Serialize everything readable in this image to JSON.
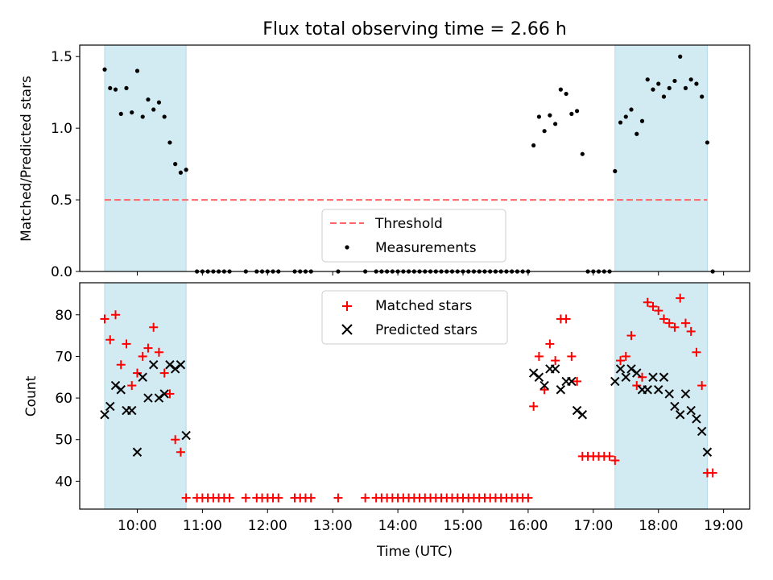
{
  "figure": {
    "title": "Flux total observing time = 2.66 h",
    "xlabel": "Time (UTC)"
  },
  "chart_data": [
    {
      "type": "scatter",
      "panel": "top",
      "ylabel": "Matched/Predicted stars",
      "xlim": [
        "09:07",
        "19:24"
      ],
      "ylim": [
        0,
        1.58
      ],
      "y_ticks": [
        "0.0",
        "0.5",
        "1.0",
        "1.5"
      ],
      "threshold": {
        "name": "Threshold",
        "value": 0.5,
        "x_range": [
          "09:30",
          "18:45"
        ],
        "color": "#ff6666"
      },
      "shaded_regions": [
        [
          "09:30",
          "10:45"
        ],
        [
          "17:20",
          "18:45"
        ]
      ],
      "shade_color": "#add8e6",
      "legend": [
        "Threshold",
        "Measurements"
      ],
      "legend_position": "lower center",
      "series": [
        {
          "name": "Measurements",
          "color": "#000000",
          "points": [
            [
              "09:30",
              1.41
            ],
            [
              "09:35",
              1.28
            ],
            [
              "09:40",
              1.27
            ],
            [
              "09:45",
              1.1
            ],
            [
              "09:50",
              1.28
            ],
            [
              "09:55",
              1.11
            ],
            [
              "10:00",
              1.4
            ],
            [
              "10:05",
              1.08
            ],
            [
              "10:10",
              1.2
            ],
            [
              "10:15",
              1.13
            ],
            [
              "10:20",
              1.18
            ],
            [
              "10:25",
              1.08
            ],
            [
              "10:30",
              0.9
            ],
            [
              "10:35",
              0.75
            ],
            [
              "10:40",
              0.69
            ],
            [
              "10:45",
              0.71
            ],
            [
              "10:55",
              0
            ],
            [
              "11:00",
              0
            ],
            [
              "11:05",
              0
            ],
            [
              "11:10",
              0
            ],
            [
              "11:15",
              0
            ],
            [
              "11:20",
              0
            ],
            [
              "11:25",
              0
            ],
            [
              "11:40",
              0
            ],
            [
              "11:50",
              0
            ],
            [
              "11:55",
              0
            ],
            [
              "12:00",
              0
            ],
            [
              "12:05",
              0
            ],
            [
              "12:10",
              0
            ],
            [
              "12:25",
              0
            ],
            [
              "12:30",
              0
            ],
            [
              "12:35",
              0
            ],
            [
              "12:40",
              0
            ],
            [
              "13:05",
              0
            ],
            [
              "13:30",
              0
            ],
            [
              "13:40",
              0
            ],
            [
              "13:45",
              0
            ],
            [
              "13:50",
              0
            ],
            [
              "13:55",
              0
            ],
            [
              "14:00",
              0
            ],
            [
              "14:05",
              0
            ],
            [
              "14:10",
              0
            ],
            [
              "14:15",
              0
            ],
            [
              "14:20",
              0
            ],
            [
              "14:25",
              0
            ],
            [
              "14:30",
              0
            ],
            [
              "14:35",
              0
            ],
            [
              "14:40",
              0
            ],
            [
              "14:45",
              0
            ],
            [
              "14:50",
              0
            ],
            [
              "14:55",
              0
            ],
            [
              "15:00",
              0
            ],
            [
              "15:05",
              0
            ],
            [
              "15:10",
              0
            ],
            [
              "15:15",
              0
            ],
            [
              "15:20",
              0
            ],
            [
              "15:25",
              0
            ],
            [
              "15:30",
              0
            ],
            [
              "15:35",
              0
            ],
            [
              "15:40",
              0
            ],
            [
              "15:45",
              0
            ],
            [
              "15:50",
              0
            ],
            [
              "15:55",
              0
            ],
            [
              "16:00",
              0
            ],
            [
              "16:05",
              0.88
            ],
            [
              "16:10",
              1.08
            ],
            [
              "16:15",
              0.98
            ],
            [
              "16:20",
              1.09
            ],
            [
              "16:25",
              1.03
            ],
            [
              "16:30",
              1.27
            ],
            [
              "16:35",
              1.24
            ],
            [
              "16:40",
              1.1
            ],
            [
              "16:45",
              1.12
            ],
            [
              "16:50",
              0.82
            ],
            [
              "16:55",
              0
            ],
            [
              "17:00",
              0
            ],
            [
              "17:05",
              0
            ],
            [
              "17:10",
              0
            ],
            [
              "17:15",
              0
            ],
            [
              "17:20",
              0.7
            ],
            [
              "17:25",
              1.04
            ],
            [
              "17:30",
              1.08
            ],
            [
              "17:35",
              1.13
            ],
            [
              "17:40",
              0.96
            ],
            [
              "17:45",
              1.05
            ],
            [
              "17:50",
              1.34
            ],
            [
              "17:55",
              1.27
            ],
            [
              "18:00",
              1.31
            ],
            [
              "18:05",
              1.22
            ],
            [
              "18:10",
              1.28
            ],
            [
              "18:15",
              1.33
            ],
            [
              "18:20",
              1.5
            ],
            [
              "18:25",
              1.28
            ],
            [
              "18:30",
              1.34
            ],
            [
              "18:35",
              1.31
            ],
            [
              "18:40",
              1.22
            ],
            [
              "18:45",
              0.9
            ],
            [
              "18:50",
              0
            ]
          ]
        }
      ]
    },
    {
      "type": "scatter",
      "panel": "bottom",
      "ylabel": "Count",
      "xlim": [
        "09:07",
        "19:24"
      ],
      "ylim": [
        33.3,
        87.7
      ],
      "y_ticks": [
        "40",
        "50",
        "60",
        "70",
        "80"
      ],
      "x_ticks": [
        "10:00",
        "11:00",
        "12:00",
        "13:00",
        "14:00",
        "15:00",
        "16:00",
        "17:00",
        "18:00",
        "19:00"
      ],
      "shaded_regions": [
        [
          "09:30",
          "10:45"
        ],
        [
          "17:20",
          "18:45"
        ]
      ],
      "shade_color": "#add8e6",
      "legend": [
        "Matched stars",
        "Predicted stars"
      ],
      "legend_position": "upper center",
      "series": [
        {
          "name": "Matched stars",
          "marker": "+",
          "color": "#ff0000",
          "points": [
            [
              "09:30",
              79
            ],
            [
              "09:35",
              74
            ],
            [
              "09:40",
              80
            ],
            [
              "09:45",
              68
            ],
            [
              "09:50",
              73
            ],
            [
              "09:55",
              63
            ],
            [
              "10:00",
              66
            ],
            [
              "10:05",
              70
            ],
            [
              "10:10",
              72
            ],
            [
              "10:15",
              77
            ],
            [
              "10:20",
              71
            ],
            [
              "10:25",
              66
            ],
            [
              "10:30",
              61
            ],
            [
              "10:35",
              50
            ],
            [
              "10:40",
              47
            ],
            [
              "10:45",
              36
            ],
            [
              "10:55",
              36
            ],
            [
              "11:00",
              36
            ],
            [
              "11:05",
              36
            ],
            [
              "11:10",
              36
            ],
            [
              "11:15",
              36
            ],
            [
              "11:20",
              36
            ],
            [
              "11:25",
              36
            ],
            [
              "11:40",
              36
            ],
            [
              "11:50",
              36
            ],
            [
              "11:55",
              36
            ],
            [
              "12:00",
              36
            ],
            [
              "12:05",
              36
            ],
            [
              "12:10",
              36
            ],
            [
              "12:25",
              36
            ],
            [
              "12:30",
              36
            ],
            [
              "12:35",
              36
            ],
            [
              "12:40",
              36
            ],
            [
              "13:05",
              36
            ],
            [
              "13:30",
              36
            ],
            [
              "13:40",
              36
            ],
            [
              "13:45",
              36
            ],
            [
              "13:50",
              36
            ],
            [
              "13:55",
              36
            ],
            [
              "14:00",
              36
            ],
            [
              "14:05",
              36
            ],
            [
              "14:10",
              36
            ],
            [
              "14:15",
              36
            ],
            [
              "14:20",
              36
            ],
            [
              "14:25",
              36
            ],
            [
              "14:30",
              36
            ],
            [
              "14:35",
              36
            ],
            [
              "14:40",
              36
            ],
            [
              "14:45",
              36
            ],
            [
              "14:50",
              36
            ],
            [
              "14:55",
              36
            ],
            [
              "15:00",
              36
            ],
            [
              "15:05",
              36
            ],
            [
              "15:10",
              36
            ],
            [
              "15:15",
              36
            ],
            [
              "15:20",
              36
            ],
            [
              "15:25",
              36
            ],
            [
              "15:30",
              36
            ],
            [
              "15:35",
              36
            ],
            [
              "15:40",
              36
            ],
            [
              "15:45",
              36
            ],
            [
              "15:50",
              36
            ],
            [
              "15:55",
              36
            ],
            [
              "16:00",
              36
            ],
            [
              "16:05",
              58
            ],
            [
              "16:10",
              70
            ],
            [
              "16:15",
              62
            ],
            [
              "16:20",
              73
            ],
            [
              "16:25",
              69
            ],
            [
              "16:30",
              79
            ],
            [
              "16:35",
              79
            ],
            [
              "16:40",
              70
            ],
            [
              "16:45",
              64
            ],
            [
              "16:50",
              46
            ],
            [
              "16:55",
              46
            ],
            [
              "17:00",
              46
            ],
            [
              "17:05",
              46
            ],
            [
              "17:10",
              46
            ],
            [
              "17:15",
              46
            ],
            [
              "17:20",
              45
            ],
            [
              "17:25",
              69
            ],
            [
              "17:30",
              70
            ],
            [
              "17:35",
              75
            ],
            [
              "17:40",
              63
            ],
            [
              "17:45",
              65
            ],
            [
              "17:50",
              83
            ],
            [
              "17:55",
              82
            ],
            [
              "18:00",
              81
            ],
            [
              "18:05",
              79
            ],
            [
              "18:10",
              78
            ],
            [
              "18:15",
              77
            ],
            [
              "18:20",
              84
            ],
            [
              "18:25",
              78
            ],
            [
              "18:30",
              76
            ],
            [
              "18:35",
              71
            ],
            [
              "18:40",
              63
            ],
            [
              "18:45",
              42
            ],
            [
              "18:50",
              42
            ]
          ]
        },
        {
          "name": "Predicted stars",
          "marker": "x",
          "color": "#000000",
          "points": [
            [
              "09:30",
              56
            ],
            [
              "09:35",
              58
            ],
            [
              "09:40",
              63
            ],
            [
              "09:45",
              62
            ],
            [
              "09:50",
              57
            ],
            [
              "09:55",
              57
            ],
            [
              "10:00",
              47
            ],
            [
              "10:05",
              65
            ],
            [
              "10:10",
              60
            ],
            [
              "10:15",
              68
            ],
            [
              "10:20",
              60
            ],
            [
              "10:25",
              61
            ],
            [
              "10:30",
              68
            ],
            [
              "10:35",
              67
            ],
            [
              "10:40",
              68
            ],
            [
              "10:45",
              51
            ],
            [
              "16:05",
              66
            ],
            [
              "16:10",
              65
            ],
            [
              "16:15",
              63
            ],
            [
              "16:20",
              67
            ],
            [
              "16:25",
              67
            ],
            [
              "16:30",
              62
            ],
            [
              "16:35",
              64
            ],
            [
              "16:40",
              64
            ],
            [
              "16:45",
              57
            ],
            [
              "16:50",
              56
            ],
            [
              "17:20",
              64
            ],
            [
              "17:25",
              67
            ],
            [
              "17:30",
              65
            ],
            [
              "17:35",
              67
            ],
            [
              "17:40",
              66
            ],
            [
              "17:45",
              62
            ],
            [
              "17:50",
              62
            ],
            [
              "17:55",
              65
            ],
            [
              "18:00",
              62
            ],
            [
              "18:05",
              65
            ],
            [
              "18:10",
              61
            ],
            [
              "18:15",
              58
            ],
            [
              "18:20",
              56
            ],
            [
              "18:25",
              61
            ],
            [
              "18:30",
              57
            ],
            [
              "18:35",
              55
            ],
            [
              "18:40",
              52
            ],
            [
              "18:45",
              47
            ]
          ]
        }
      ]
    }
  ]
}
